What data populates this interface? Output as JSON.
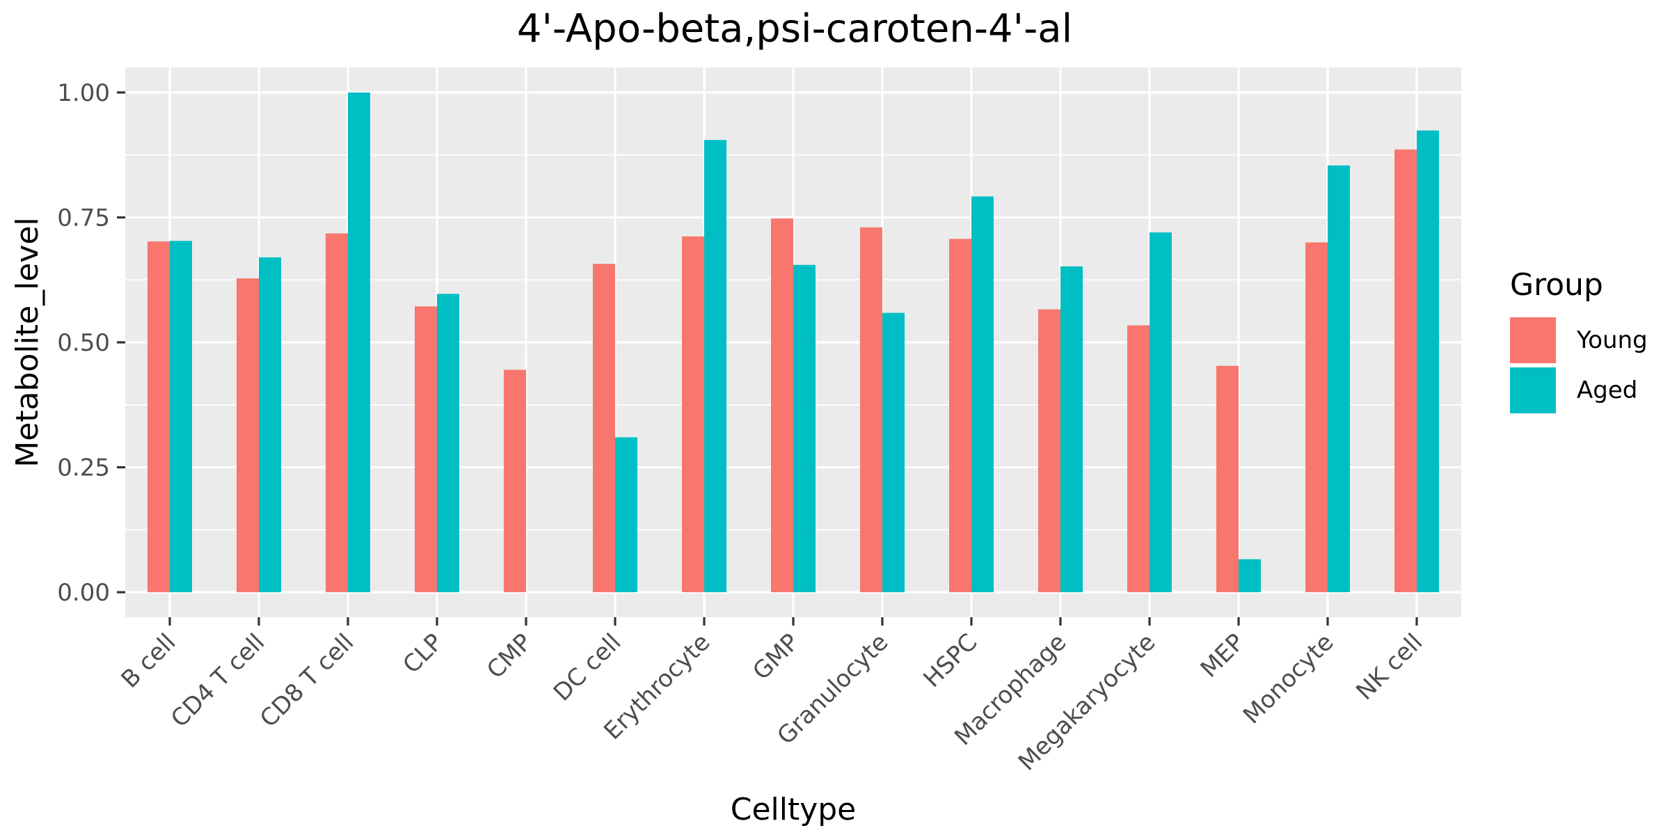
{
  "chart_data": {
    "type": "bar",
    "title": "4'-Apo-beta,psi-caroten-4'-al",
    "xlabel": "Celltype",
    "ylabel": "Metabolite_level",
    "ylim": [
      -0.05,
      1.05
    ],
    "yticks": [
      0.0,
      0.25,
      0.5,
      0.75,
      1.0
    ],
    "ytick_labels": [
      "0.00",
      "0.25",
      "0.50",
      "0.75",
      "1.00"
    ],
    "grid": true,
    "legend_title": "Group",
    "legend_position": "right",
    "categories": [
      "B cell",
      "CD4 T cell",
      "CD8 T cell",
      "CLP",
      "CMP",
      "DC cell",
      "Erythrocyte",
      "GMP",
      "Granulocyte",
      "HSPC",
      "Macrophage",
      "Megakaryocyte",
      "MEP",
      "Monocyte",
      "NK cell"
    ],
    "series": [
      {
        "name": "Young",
        "color": "#F8766D",
        "values": [
          0.702,
          0.628,
          0.718,
          0.572,
          0.445,
          0.657,
          0.712,
          0.748,
          0.73,
          0.707,
          0.566,
          0.534,
          0.453,
          0.7,
          0.886
        ]
      },
      {
        "name": "Aged",
        "color": "#00BFC4",
        "values": [
          0.703,
          0.67,
          1.0,
          0.597,
          0.0,
          0.31,
          0.905,
          0.655,
          0.559,
          0.792,
          0.652,
          0.72,
          0.066,
          0.854,
          0.924
        ]
      }
    ]
  }
}
